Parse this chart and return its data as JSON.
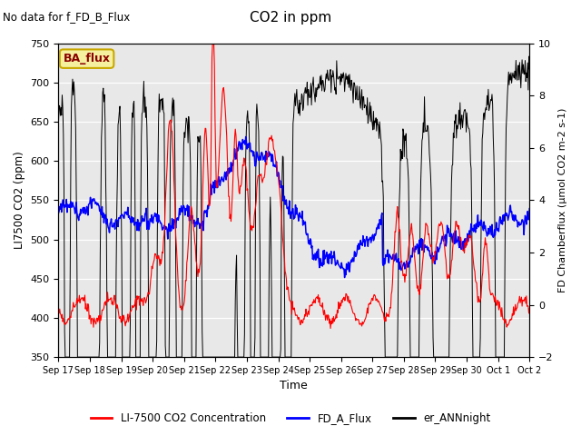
{
  "title": "CO2 in ppm",
  "top_left_text": "No data for f_FD_B_Flux",
  "xlabel": "Time",
  "ylabel_left": "LI7500 CO2 (ppm)",
  "ylabel_right": "FD Chamberflux (μmol CO2 m-2 s-1)",
  "ylim_left": [
    350,
    750
  ],
  "ylim_right": [
    -2,
    10
  ],
  "yticks_left": [
    350,
    400,
    450,
    500,
    550,
    600,
    650,
    700,
    750
  ],
  "yticks_right": [
    -2,
    0,
    2,
    4,
    6,
    8,
    10
  ],
  "xtick_labels": [
    "Sep 17",
    "Sep 18",
    "Sep 19",
    "Sep 20",
    "Sep 21",
    "Sep 22",
    "Sep 23",
    "Sep 24",
    "Sep 25",
    "Sep 26",
    "Sep 27",
    "Sep 28",
    "Sep 29",
    "Sep 30",
    "Oct 1",
    "Oct 2"
  ],
  "ba_flux_label": "BA_flux",
  "legend_labels": [
    "LI-7500 CO2 Concentration",
    "FD_A_Flux",
    "er_ANNnight"
  ],
  "line_colors": [
    "red",
    "blue",
    "black"
  ],
  "bg_color": "#e8e8e8",
  "fig_bg_color": "#ffffff"
}
